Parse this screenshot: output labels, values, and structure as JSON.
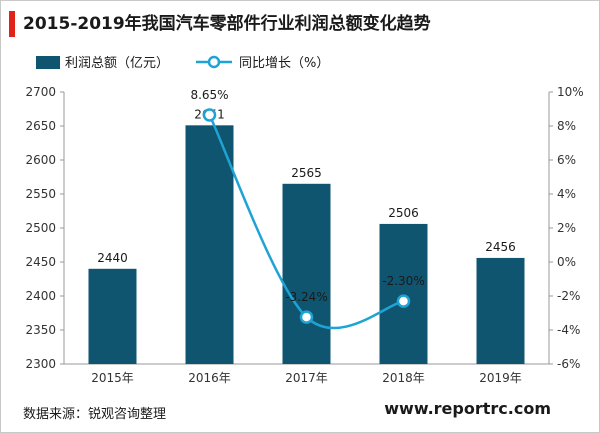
{
  "title": "2015-2019年我国汽车零部件行业利润总额变化趋势",
  "source": "数据来源：锐观咨询整理",
  "website": "www.reportrc.com",
  "colors": {
    "bar": "#0f5570",
    "line": "#1fa3d4",
    "title_accent": "#e2231a"
  },
  "chart_data": {
    "type": "bar",
    "categories": [
      "2015年",
      "2016年",
      "2017年",
      "2018年",
      "2019年"
    ],
    "series": [
      {
        "name": "利润总额（亿元）",
        "type": "bar",
        "axis": "left",
        "values": [
          2440,
          2651,
          2565,
          2506,
          2456
        ],
        "labels": [
          "2440",
          "2651",
          "2565",
          "2506",
          "2456"
        ]
      },
      {
        "name": "同比增长（%）",
        "type": "line",
        "axis": "right",
        "values": [
          null,
          8.65,
          -3.24,
          -2.3,
          null
        ],
        "labels": [
          "",
          "8.65%",
          "-3.24%",
          "-2.30%",
          ""
        ]
      }
    ],
    "y_left": {
      "min": 2300,
      "max": 2700,
      "ticks": [
        "2300",
        "2350",
        "2400",
        "2450",
        "2500",
        "2550",
        "2600",
        "2650",
        "2700"
      ]
    },
    "y_right": {
      "min": -6,
      "max": 10,
      "ticks": [
        "-6%",
        "-4%",
        "-2%",
        "0%",
        "2%",
        "4%",
        "6%",
        "8%",
        "10%"
      ]
    },
    "legend_position": "top-left",
    "grid": false
  }
}
